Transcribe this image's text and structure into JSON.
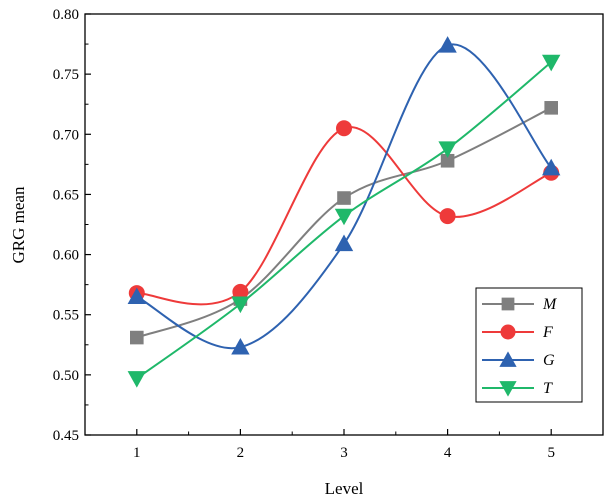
{
  "chart_data": {
    "type": "line",
    "xlabel": "Level",
    "ylabel": "GRG mean",
    "x": [
      1,
      2,
      3,
      4,
      5
    ],
    "xlim": [
      0.5,
      5.5
    ],
    "ylim": [
      0.45,
      0.8
    ],
    "yticks": [
      "0.45",
      "0.50",
      "0.55",
      "0.60",
      "0.65",
      "0.70",
      "0.75",
      "0.80"
    ],
    "xticks": [
      "1",
      "2",
      "3",
      "4",
      "5"
    ],
    "smooth": true,
    "grid": false,
    "legend_position": "bottom-right",
    "series": [
      {
        "name": "M",
        "color": "#7f7f7f",
        "marker": "square",
        "values": [
          0.531,
          0.563,
          0.647,
          0.678,
          0.722
        ]
      },
      {
        "name": "F",
        "color": "#ee3a3a",
        "marker": "circle",
        "values": [
          0.568,
          0.569,
          0.705,
          0.632,
          0.668
        ]
      },
      {
        "name": "G",
        "color": "#2e62b0",
        "marker": "triangle-up",
        "values": [
          0.565,
          0.523,
          0.609,
          0.774,
          0.672
        ]
      },
      {
        "name": "T",
        "color": "#1fb86a",
        "marker": "triangle-down",
        "values": [
          0.497,
          0.559,
          0.632,
          0.688,
          0.76
        ]
      }
    ]
  }
}
